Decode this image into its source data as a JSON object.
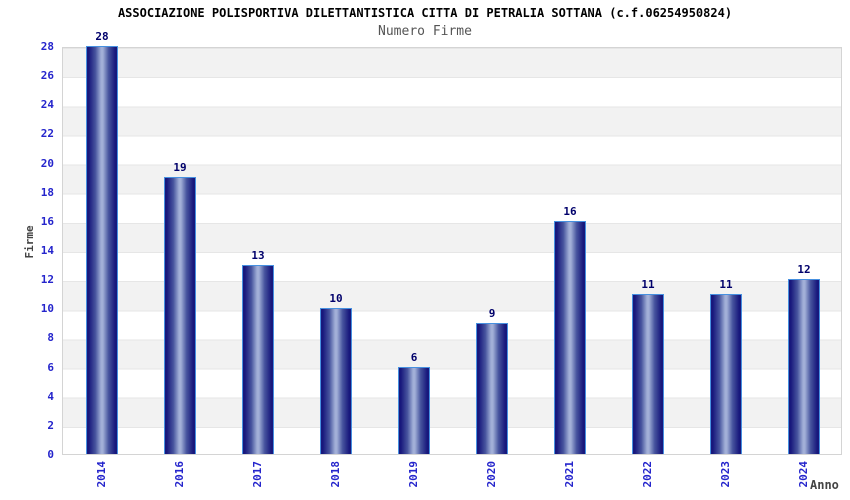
{
  "title": "ASSOCIAZIONE POLISPORTIVA DILETTANTISTICA CITTA DI PETRALIA SOTTANA (c.f.06254950824)",
  "subtitle": "Numero Firme",
  "chart_data": {
    "type": "bar",
    "title": "ASSOCIAZIONE POLISPORTIVA DILETTANTISTICA CITTA DI PETRALIA SOTTANA (c.f.06254950824)",
    "subtitle": "Numero Firme",
    "categories": [
      "2014",
      "2016",
      "2017",
      "2018",
      "2019",
      "2020",
      "2021",
      "2022",
      "2023",
      "2024"
    ],
    "values": [
      28,
      19,
      13,
      10,
      6,
      9,
      16,
      11,
      11,
      12
    ],
    "xlabel": "Anno",
    "ylabel": "Firme",
    "ylim": [
      0,
      28
    ],
    "ytick_step": 2,
    "yticks": [
      0,
      2,
      4,
      6,
      8,
      10,
      12,
      14,
      16,
      18,
      20,
      22,
      24,
      26,
      28
    ],
    "grid": "horizontal-bands",
    "legend": "none",
    "colors": {
      "bar_edge": "#18187c",
      "bar_mid": "#47549e",
      "bar_center": "#a2afd7",
      "bar_outline": "#4690e0",
      "tick_label": "#2525cc",
      "value_label": "#00006b",
      "title_text": "#000000",
      "subtitle_text": "#555555",
      "axis_title_text": "#444444",
      "band_gray": "#f2f2f2",
      "plot_border": "#d4d4d4"
    }
  }
}
